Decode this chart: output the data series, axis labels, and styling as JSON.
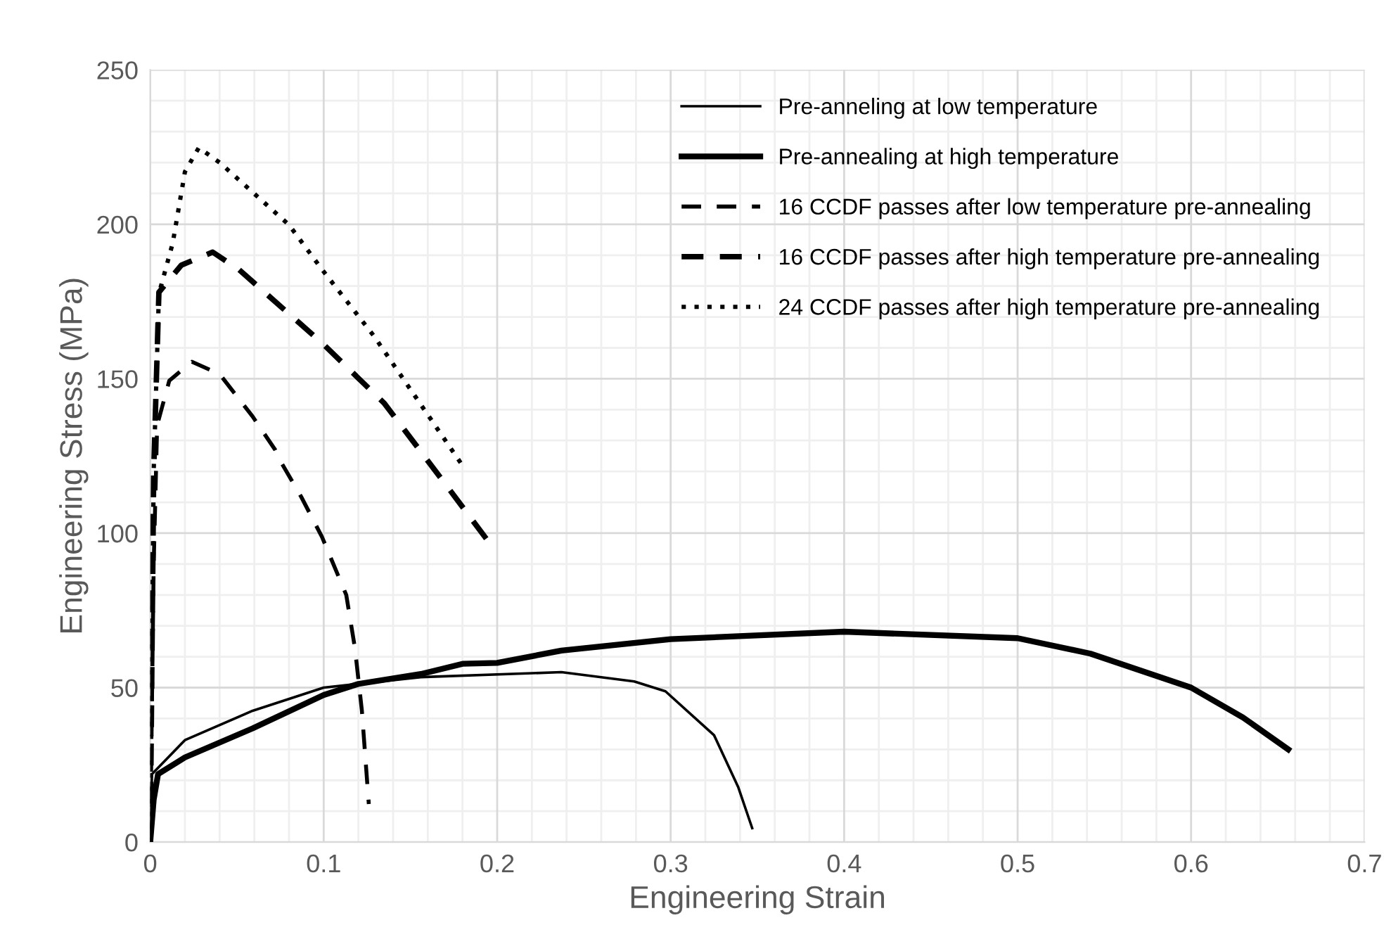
{
  "chart_data": {
    "type": "line",
    "xlabel": "Engineering Strain",
    "ylabel": "Engineering Stress (MPa)",
    "xlim": [
      0,
      0.7
    ],
    "ylim": [
      0,
      250
    ],
    "xticks": [
      0,
      {
        "value": 0.02,
        "label": null
      },
      {
        "value": 0.04,
        "label": null
      },
      {
        "value": 0.06,
        "label": null
      },
      {
        "value": 0.08,
        "label": null
      },
      {
        "value": 0.1,
        "label": "0.1"
      },
      {
        "value": 0.12,
        "label": null
      },
      {
        "value": 0.14,
        "label": null
      },
      {
        "value": 0.16,
        "label": null
      },
      {
        "value": 0.18,
        "label": null
      },
      {
        "value": 0.2,
        "label": "0.2"
      },
      {
        "value": 0.22,
        "label": null
      },
      {
        "value": 0.24,
        "label": null
      },
      {
        "value": 0.26,
        "label": null
      },
      {
        "value": 0.28,
        "label": null
      },
      {
        "value": 0.3,
        "label": "0.3"
      },
      {
        "value": 0.32,
        "label": null
      },
      {
        "value": 0.34,
        "label": null
      },
      {
        "value": 0.36,
        "label": null
      },
      {
        "value": 0.38,
        "label": null
      },
      {
        "value": 0.4,
        "label": "0.4"
      },
      {
        "value": 0.42,
        "label": null
      },
      {
        "value": 0.44,
        "label": null
      },
      {
        "value": 0.46,
        "label": null
      },
      {
        "value": 0.48,
        "label": null
      },
      {
        "value": 0.5,
        "label": "0.5"
      },
      {
        "value": 0.52,
        "label": null
      },
      {
        "value": 0.54,
        "label": null
      },
      {
        "value": 0.56,
        "label": null
      },
      {
        "value": 0.58,
        "label": null
      },
      {
        "value": 0.6,
        "label": "0.6"
      },
      {
        "value": 0.62,
        "label": null
      },
      {
        "value": 0.64,
        "label": null
      },
      {
        "value": 0.66,
        "label": null
      },
      {
        "value": 0.68,
        "label": null
      },
      {
        "value": 0.7,
        "label": "0.7"
      }
    ],
    "yticks": [
      0,
      {
        "value": 10,
        "label": null
      },
      {
        "value": 20,
        "label": null
      },
      {
        "value": 30,
        "label": null
      },
      {
        "value": 40,
        "label": null
      },
      50,
      {
        "value": 60,
        "label": null
      },
      {
        "value": 70,
        "label": null
      },
      {
        "value": 80,
        "label": null
      },
      {
        "value": 90,
        "label": null
      },
      100,
      {
        "value": 110,
        "label": null
      },
      {
        "value": 120,
        "label": null
      },
      {
        "value": 130,
        "label": null
      },
      {
        "value": 140,
        "label": null
      },
      150,
      {
        "value": 160,
        "label": null
      },
      {
        "value": 170,
        "label": null
      },
      {
        "value": 180,
        "label": null
      },
      {
        "value": 190,
        "label": null
      },
      200,
      {
        "value": 210,
        "label": null
      },
      {
        "value": 220,
        "label": null
      },
      {
        "value": 230,
        "label": null
      },
      {
        "value": 240,
        "label": null
      },
      250
    ],
    "grid": true,
    "legend": "top right",
    "marker": "none",
    "series": [
      {
        "name": "Pre-anneling at low temperature",
        "color": "#000000",
        "line_style": "solid",
        "x": [
          0,
          0.001,
          0.02,
          0.059,
          0.1,
          0.156,
          0.237,
          0.279,
          0.297,
          0.325,
          0.339,
          0.347
        ],
        "values": [
          0,
          22,
          33,
          42.5,
          50,
          53.4,
          55,
          52,
          48.8,
          34.6,
          17.7,
          4.5
        ]
      },
      {
        "name": "Pre-annealing at high temperature",
        "color": "#000000",
        "line_style": "solid",
        "x": [
          0,
          0.002,
          0.0045,
          0.02,
          0.059,
          0.1,
          0.12,
          0.156,
          0.18,
          0.2,
          0.237,
          0.3,
          0.4,
          0.5,
          0.542,
          0.6,
          0.63,
          0.656
        ],
        "values": [
          0,
          13.7,
          22,
          27.4,
          36.8,
          47.6,
          51.2,
          54.4,
          57.7,
          58,
          62,
          65.7,
          68.1,
          66,
          61,
          50,
          40.3,
          30
        ]
      },
      {
        "name": "16 CCDF passes after low temperature pre-annealing",
        "color": "#000000",
        "line_style": "dashed",
        "x": [
          0,
          0.002,
          0.004,
          0.011,
          0.024,
          0.04,
          0.059,
          0.072,
          0.075,
          0.087,
          0.099,
          0.113,
          0.118,
          0.122,
          0.126
        ],
        "values": [
          0,
          90,
          135,
          149.4,
          155.5,
          151.5,
          137.8,
          127,
          123.4,
          111.8,
          98.8,
          80,
          62.8,
          42.6,
          12.3
        ]
      },
      {
        "name": "16 CCDF passes after high temperature pre-annealing",
        "color": "#000000",
        "line_style": "dashed",
        "x": [
          0,
          0.002,
          0.005,
          0.018,
          0.036,
          0.051,
          0.099,
          0.135,
          0.17,
          0.194
        ],
        "values": [
          0,
          120,
          178,
          186.8,
          191,
          185.4,
          161.6,
          142,
          116,
          98
        ]
      },
      {
        "name": "24 CCDF passes after high temperature pre-annealing",
        "color": "#000000",
        "line_style": "dotted",
        "x": [
          0,
          0.002,
          0.005,
          0.013,
          0.02,
          0.028,
          0.04,
          0.08,
          0.099,
          0.129,
          0.18
        ],
        "values": [
          0,
          120,
          177.5,
          194,
          217,
          224.8,
          220,
          199.8,
          185.4,
          163.8,
          121.9
        ]
      }
    ]
  }
}
